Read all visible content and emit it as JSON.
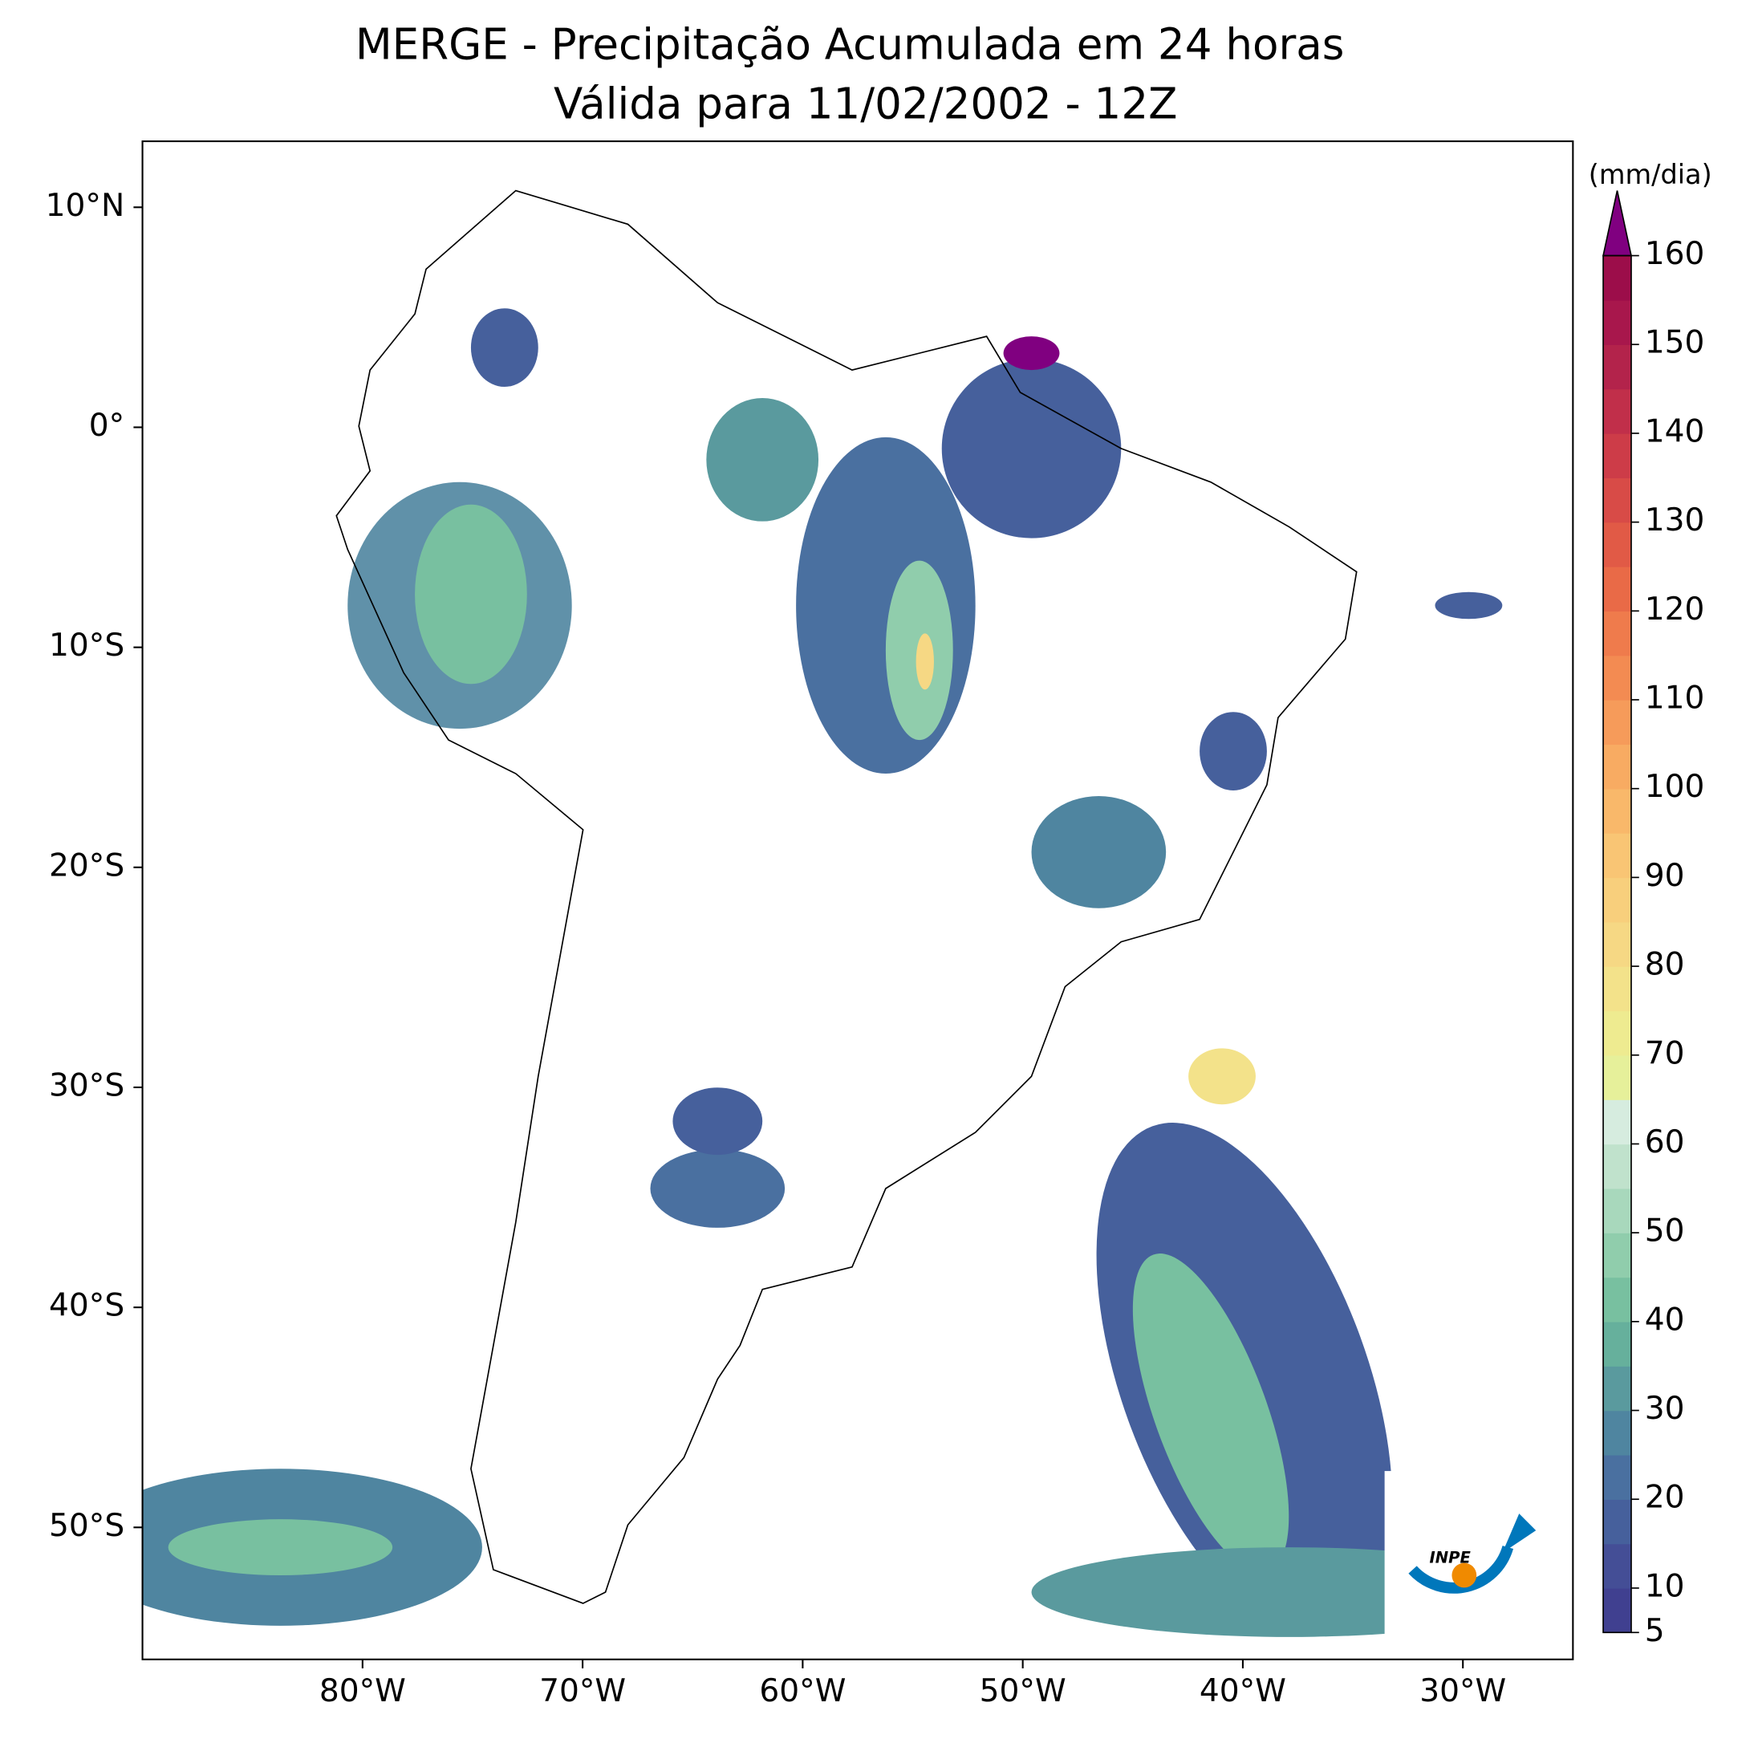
{
  "title": "MERGE - Precipitação Acumulada em 24 horas",
  "subtitle": "Válida para 11/02/2002 - 12Z",
  "map": {
    "xlim": [
      -90,
      -25
    ],
    "ylim": [
      -56,
      13
    ],
    "xticks": [
      {
        "value": -80,
        "label": "80°W"
      },
      {
        "value": -70,
        "label": "70°W"
      },
      {
        "value": -60,
        "label": "60°W"
      },
      {
        "value": -50,
        "label": "50°W"
      },
      {
        "value": -40,
        "label": "40°W"
      },
      {
        "value": -30,
        "label": "30°W"
      }
    ],
    "yticks": [
      {
        "value": 10,
        "label": "10°N"
      },
      {
        "value": 0,
        "label": "0°"
      },
      {
        "value": -10,
        "label": "10°S"
      },
      {
        "value": -20,
        "label": "20°S"
      },
      {
        "value": -30,
        "label": "30°S"
      },
      {
        "value": -40,
        "label": "40°S"
      },
      {
        "value": -50,
        "label": "50°S"
      }
    ]
  },
  "colorbar": {
    "label": "(mm/dia)",
    "lim": [
      5,
      160
    ],
    "ticks": [
      5,
      10,
      20,
      30,
      40,
      50,
      60,
      70,
      80,
      90,
      100,
      110,
      120,
      130,
      140,
      150,
      160
    ],
    "colors": [
      "#404090",
      "#444e96",
      "#46609c",
      "#4a70a0",
      "#4f85a0",
      "#5a9a9e",
      "#66b09c",
      "#78c0a0",
      "#90cdac",
      "#a8d8bc",
      "#c0e2cc",
      "#d6ecdf",
      "#e6f09a",
      "#eeeb90",
      "#f3e28a",
      "#f6d884",
      "#f8cf7c",
      "#f9c574",
      "#f9b86a",
      "#f8ab62",
      "#f69b5a",
      "#f38b52",
      "#ef7b4c",
      "#e96a47",
      "#e15a46",
      "#d84b47",
      "#cd3c48",
      "#c12f4a",
      "#b3234b",
      "#a8174c",
      "#9c0d4a"
    ],
    "extend_color": "#800080"
  },
  "logo": {
    "text": "INPE"
  }
}
